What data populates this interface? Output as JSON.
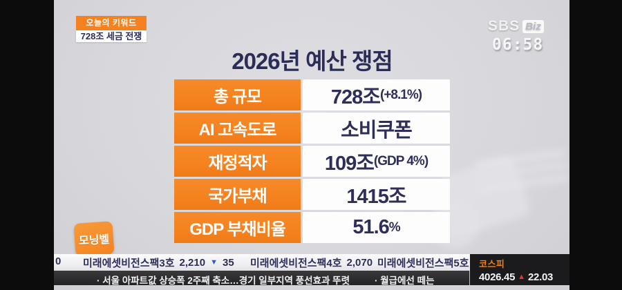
{
  "channel": {
    "name_main": "SBS",
    "name_sub": "Biz",
    "time": "06:58"
  },
  "keyword": {
    "label": "오늘의 키워드",
    "value": "728조 세금 전쟁"
  },
  "title": "2026년 예산 쟁점",
  "budget_table": {
    "rows": [
      {
        "label": "총 규모",
        "value": "728조",
        "sub": "(+8.1%)"
      },
      {
        "label": "AI 고속도로",
        "value": "소비쿠폰",
        "sub": ""
      },
      {
        "label": "재정적자",
        "value": "109조",
        "sub": "(GDP 4%)"
      },
      {
        "label": "국가부채",
        "value": "1415조",
        "sub": ""
      },
      {
        "label": "GDP 부채비율",
        "value": "51.6",
        "sub": "%"
      }
    ]
  },
  "program": {
    "logo": "모닝벨"
  },
  "stock_ticker": {
    "leading": "0",
    "items": [
      {
        "name": "미래에셋비전스팩3호",
        "price": "2,210",
        "change": "35",
        "direction": "down"
      },
      {
        "name": "미래에셋비전스팩4호",
        "price": "2,070",
        "change": "",
        "direction": "none"
      },
      {
        "name": "미래에셋비전스팩5호",
        "price": "",
        "change": "",
        "direction": "none"
      }
    ]
  },
  "headlines": {
    "first": "· 서울 아파트값 상승폭 2주째 축소…경기 일부지역 풍선효과 뚜렷",
    "second": "· 월급에선 떼는"
  },
  "index_box": {
    "name": "코스피",
    "value": "4026.45",
    "change": "22.03",
    "direction": "up"
  },
  "colors": {
    "accent_orange": "#f5821f",
    "navy_text": "#2d2f5a",
    "kospi_label_orange": "#f08018",
    "up_red": "#e5382e",
    "down_blue": "#2d5bd1",
    "background_gray": "#d8d8dc"
  }
}
